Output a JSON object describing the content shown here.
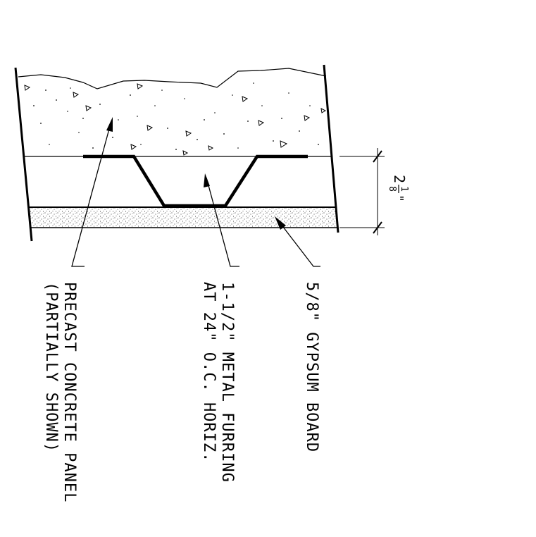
{
  "labels": {
    "concrete_line1": "PRECAST CONCRETE PANEL",
    "concrete_line2": "(PARTIALLY SHOWN)",
    "furring_line1": "1-1/2\" METAL FURRING",
    "furring_line2": "AT 24\" O.C. HORIZ.",
    "gypsum": "5/8\" GYPSUM BOARD"
  },
  "dimension": {
    "whole": "2",
    "numerator": "1",
    "denominator": "8",
    "unit": "\""
  }
}
